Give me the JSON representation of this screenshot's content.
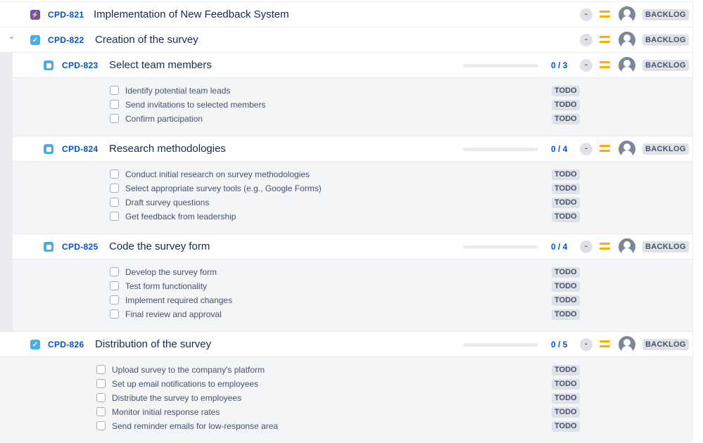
{
  "colors": {
    "accent": "#0052cc",
    "epic": "#6554c0",
    "story_task": "#4bade8",
    "priority": "#ffab00"
  },
  "issues": [
    {
      "key": "CPD-821",
      "title": "Implementation of New Feedback System",
      "type": "epic",
      "icon": "lightning-icon",
      "level": 0,
      "expandable": false,
      "estimate": "-",
      "priority": "medium",
      "status": "BACKLOG"
    },
    {
      "key": "CPD-822",
      "title": "Creation of the survey",
      "type": "task",
      "icon": "checkbox-icon",
      "level": 0,
      "expandable": true,
      "estimate": "-",
      "priority": "medium",
      "status": "BACKLOG"
    },
    {
      "key": "CPD-823",
      "title": "Select team members",
      "type": "subtask",
      "icon": "subtask-icon",
      "level": 1,
      "progress": "0 / 3",
      "progress_fraction": 0,
      "estimate": "-",
      "priority": "medium",
      "status": "BACKLOG",
      "checklist": [
        {
          "text": "Identify potential team leads",
          "status": "TODO"
        },
        {
          "text": "Send invitations to selected members",
          "status": "TODO"
        },
        {
          "text": "Confirm participation",
          "status": "TODO"
        }
      ]
    },
    {
      "key": "CPD-824",
      "title": "Research methodologies",
      "type": "subtask",
      "icon": "subtask-icon",
      "level": 1,
      "progress": "0 / 4",
      "progress_fraction": 0,
      "estimate": "-",
      "priority": "medium",
      "status": "BACKLOG",
      "checklist": [
        {
          "text": "Conduct initial research on survey methodologies",
          "status": "TODO"
        },
        {
          "text": "Select appropriate survey tools (e.g., Google Forms)",
          "status": "TODO"
        },
        {
          "text": "Draft survey questions",
          "status": "TODO"
        },
        {
          "text": "Get feedback from leadership",
          "status": "TODO"
        }
      ]
    },
    {
      "key": "CPD-825",
      "title": "Code the survey form",
      "type": "subtask",
      "icon": "subtask-icon",
      "level": 1,
      "progress": "0 / 4",
      "progress_fraction": 0,
      "estimate": "-",
      "priority": "medium",
      "status": "BACKLOG",
      "checklist": [
        {
          "text": "Develop the survey form",
          "status": "TODO"
        },
        {
          "text": "Test form functionality",
          "status": "TODO"
        },
        {
          "text": "Implement required changes",
          "status": "TODO"
        },
        {
          "text": "Final review and approval",
          "status": "TODO"
        }
      ]
    },
    {
      "key": "CPD-826",
      "title": "Distribution of the survey",
      "type": "task",
      "icon": "checkbox-icon",
      "level": 0,
      "progress": "0 / 5",
      "progress_fraction": 0,
      "estimate": "-",
      "priority": "medium",
      "status": "BACKLOG",
      "checklist": [
        {
          "text": "Upload survey to the company's platform",
          "status": "TODO"
        },
        {
          "text": "Set up email notifications to employees",
          "status": "TODO"
        },
        {
          "text": "Distribute the survey to employees",
          "status": "TODO"
        },
        {
          "text": "Monitor initial response rates",
          "status": "TODO"
        },
        {
          "text": "Send reminder emails for low-response area",
          "status": "TODO"
        }
      ]
    }
  ]
}
